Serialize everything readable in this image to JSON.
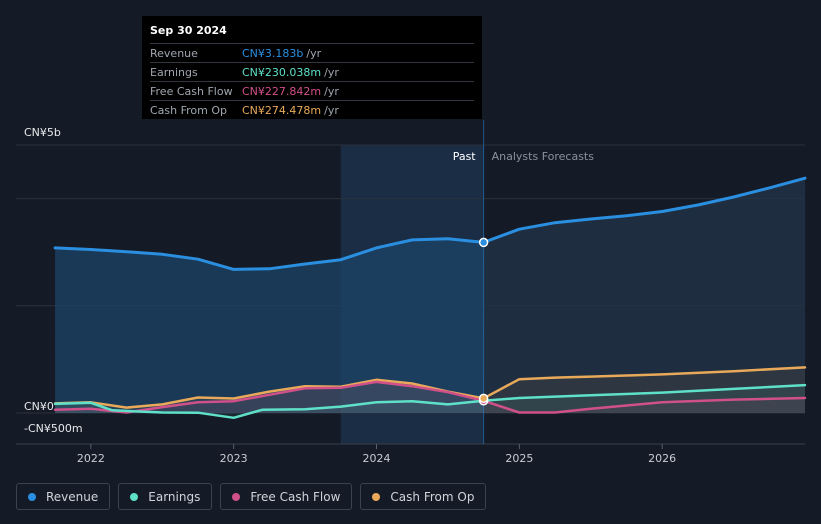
{
  "tooltip": {
    "date": "Sep 30 2024",
    "rows": [
      {
        "label": "Revenue",
        "value": "CN¥3.183b",
        "unit": "/yr",
        "color": "#2a8fe0"
      },
      {
        "label": "Earnings",
        "value": "CN¥230.038m",
        "unit": "/yr",
        "color": "#5fe0c8"
      },
      {
        "label": "Free Cash Flow",
        "value": "CN¥227.842m",
        "unit": "/yr",
        "color": "#d0508a"
      },
      {
        "label": "Cash From Op",
        "value": "CN¥274.478m",
        "unit": "/yr",
        "color": "#e8a95a"
      }
    ]
  },
  "legend": [
    {
      "label": "Revenue",
      "color": "#2a8fe0"
    },
    {
      "label": "Earnings",
      "color": "#5fe0c8"
    },
    {
      "label": "Free Cash Flow",
      "color": "#d0508a"
    },
    {
      "label": "Cash From Op",
      "color": "#e8a95a"
    }
  ],
  "chart_data": {
    "type": "line",
    "title": "",
    "xlabel": "",
    "ylabel": "",
    "unit": "CNY millions",
    "xlim": [
      2021.7,
      2027.0
    ],
    "ylim": [
      -500,
      5000
    ],
    "y_tick_labels": [
      {
        "value": 5000,
        "label": "CN¥5b"
      },
      {
        "value": 0,
        "label": "CN¥0"
      },
      {
        "value": -500,
        "label": "-CN¥500m"
      }
    ],
    "x_ticks": [
      2022,
      2023,
      2024,
      2025,
      2026
    ],
    "x_tick_labels": [
      "2022",
      "2023",
      "2024",
      "2025",
      "2026"
    ],
    "divider_x": 2024.75,
    "past_label": "Past",
    "forecast_label": "Analysts Forecasts",
    "highlight_start": 2023.75,
    "series": [
      {
        "name": "Revenue",
        "color": "#2a8fe0",
        "marker_at": 2024.75,
        "points": [
          [
            2021.75,
            3080
          ],
          [
            2022.0,
            3050
          ],
          [
            2022.25,
            3010
          ],
          [
            2022.5,
            2960
          ],
          [
            2022.75,
            2870
          ],
          [
            2023.0,
            2680
          ],
          [
            2023.25,
            2690
          ],
          [
            2023.5,
            2780
          ],
          [
            2023.75,
            2860
          ],
          [
            2024.0,
            3080
          ],
          [
            2024.25,
            3230
          ],
          [
            2024.5,
            3250
          ],
          [
            2024.75,
            3183
          ],
          [
            2025.0,
            3430
          ],
          [
            2025.25,
            3550
          ],
          [
            2025.5,
            3620
          ],
          [
            2025.75,
            3680
          ],
          [
            2026.0,
            3760
          ],
          [
            2026.25,
            3880
          ],
          [
            2026.5,
            4030
          ],
          [
            2026.75,
            4200
          ],
          [
            2027.0,
            4380
          ]
        ]
      },
      {
        "name": "Earnings",
        "color": "#5fe0c8",
        "marker_at": 2024.75,
        "points": [
          [
            2021.75,
            170
          ],
          [
            2022.0,
            190
          ],
          [
            2022.15,
            50
          ],
          [
            2022.5,
            10
          ],
          [
            2022.75,
            5
          ],
          [
            2023.0,
            -90
          ],
          [
            2023.2,
            60
          ],
          [
            2023.5,
            70
          ],
          [
            2023.75,
            120
          ],
          [
            2024.0,
            200
          ],
          [
            2024.25,
            220
          ],
          [
            2024.5,
            160
          ],
          [
            2024.75,
            230
          ],
          [
            2025.0,
            280
          ],
          [
            2025.5,
            330
          ],
          [
            2026.0,
            380
          ],
          [
            2026.5,
            450
          ],
          [
            2027.0,
            520
          ]
        ]
      },
      {
        "name": "Free Cash Flow",
        "color": "#d0508a",
        "marker_at": 2024.75,
        "points": [
          [
            2021.75,
            60
          ],
          [
            2022.0,
            80
          ],
          [
            2022.25,
            10
          ],
          [
            2022.5,
            110
          ],
          [
            2022.75,
            200
          ],
          [
            2023.0,
            220
          ],
          [
            2023.25,
            340
          ],
          [
            2023.5,
            460
          ],
          [
            2023.75,
            470
          ],
          [
            2024.0,
            580
          ],
          [
            2024.25,
            500
          ],
          [
            2024.5,
            390
          ],
          [
            2024.75,
            228
          ],
          [
            2025.0,
            10
          ],
          [
            2025.25,
            10
          ],
          [
            2025.5,
            80
          ],
          [
            2025.75,
            140
          ],
          [
            2026.0,
            200
          ],
          [
            2026.5,
            250
          ],
          [
            2027.0,
            280
          ]
        ]
      },
      {
        "name": "Cash From Op",
        "color": "#e8a95a",
        "marker_at": 2024.75,
        "points": [
          [
            2021.75,
            180
          ],
          [
            2022.0,
            200
          ],
          [
            2022.25,
            100
          ],
          [
            2022.5,
            160
          ],
          [
            2022.75,
            290
          ],
          [
            2023.0,
            270
          ],
          [
            2023.25,
            400
          ],
          [
            2023.5,
            500
          ],
          [
            2023.75,
            490
          ],
          [
            2024.0,
            620
          ],
          [
            2024.25,
            550
          ],
          [
            2024.5,
            400
          ],
          [
            2024.75,
            274
          ],
          [
            2025.0,
            630
          ],
          [
            2025.25,
            660
          ],
          [
            2025.5,
            680
          ],
          [
            2025.75,
            700
          ],
          [
            2026.0,
            720
          ],
          [
            2026.5,
            780
          ],
          [
            2027.0,
            850
          ]
        ]
      }
    ]
  }
}
